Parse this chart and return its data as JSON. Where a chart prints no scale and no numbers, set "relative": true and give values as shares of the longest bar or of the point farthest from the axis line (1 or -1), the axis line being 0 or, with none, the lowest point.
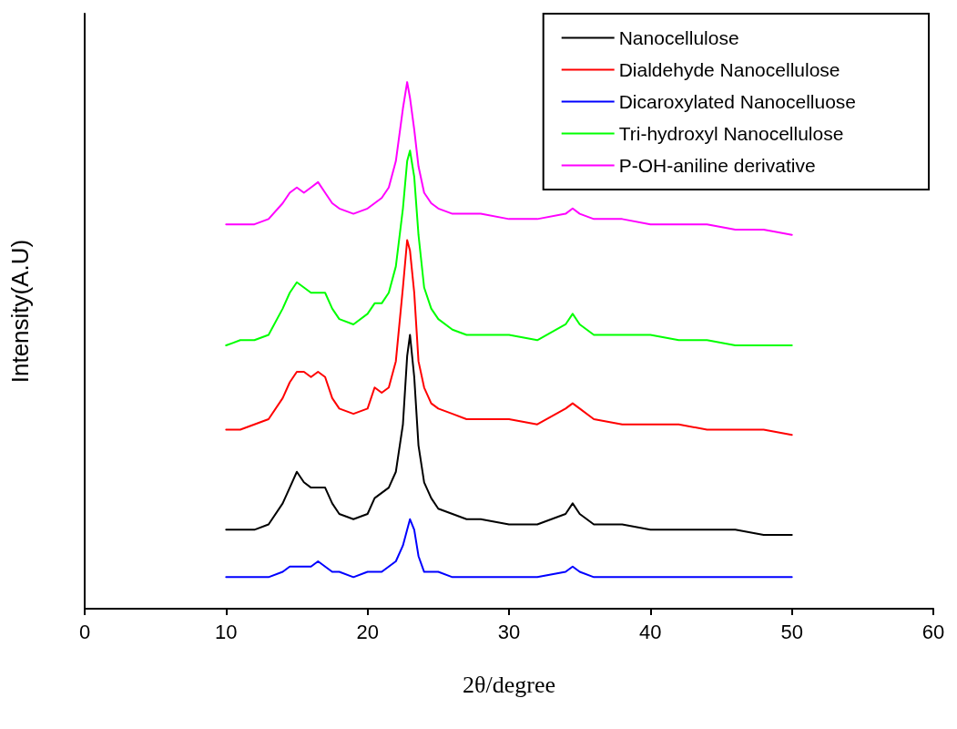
{
  "chart_data": {
    "type": "line",
    "relative": true,
    "xlabel": "2θ/degree",
    "ylabel": "Intensity(A.U)",
    "xlim": [
      0,
      60
    ],
    "xticks": [
      0,
      10,
      20,
      30,
      40,
      50,
      60
    ],
    "grid": false,
    "legend": "top right",
    "marker": "none",
    "x": [
      10,
      11,
      12,
      13,
      14,
      14.5,
      15,
      15.5,
      16,
      16.5,
      17,
      17.5,
      18,
      19,
      20,
      20.5,
      21,
      21.5,
      22,
      22.5,
      22.8,
      23,
      23.3,
      23.6,
      24,
      24.5,
      25,
      26,
      27,
      28,
      30,
      32,
      34,
      34.5,
      35,
      36,
      38,
      40,
      42,
      44,
      46,
      48,
      50
    ],
    "series": [
      {
        "name": "Nanocellulose",
        "color": "#000000",
        "values": [
          0.15,
          0.15,
          0.15,
          0.16,
          0.2,
          0.23,
          0.26,
          0.24,
          0.23,
          0.23,
          0.23,
          0.2,
          0.18,
          0.17,
          0.18,
          0.21,
          0.22,
          0.23,
          0.26,
          0.35,
          0.48,
          0.52,
          0.44,
          0.31,
          0.24,
          0.21,
          0.19,
          0.18,
          0.17,
          0.17,
          0.16,
          0.16,
          0.18,
          0.2,
          0.18,
          0.16,
          0.16,
          0.15,
          0.15,
          0.15,
          0.15,
          0.14,
          0.14
        ]
      },
      {
        "name": "Dialdehyde Nanocellulose",
        "color": "#ff0000",
        "values": [
          0.34,
          0.34,
          0.35,
          0.36,
          0.4,
          0.43,
          0.45,
          0.45,
          0.44,
          0.45,
          0.44,
          0.4,
          0.38,
          0.37,
          0.38,
          0.42,
          0.41,
          0.42,
          0.47,
          0.61,
          0.7,
          0.68,
          0.6,
          0.47,
          0.42,
          0.39,
          0.38,
          0.37,
          0.36,
          0.36,
          0.36,
          0.35,
          0.38,
          0.39,
          0.38,
          0.36,
          0.35,
          0.35,
          0.35,
          0.34,
          0.34,
          0.34,
          0.33
        ]
      },
      {
        "name": "Dicaroxylated Nanocelluose",
        "color": "#0000ff",
        "values": [
          0.06,
          0.06,
          0.06,
          0.06,
          0.07,
          0.08,
          0.08,
          0.08,
          0.08,
          0.09,
          0.08,
          0.07,
          0.07,
          0.06,
          0.07,
          0.07,
          0.07,
          0.08,
          0.09,
          0.12,
          0.15,
          0.17,
          0.15,
          0.1,
          0.07,
          0.07,
          0.07,
          0.06,
          0.06,
          0.06,
          0.06,
          0.06,
          0.07,
          0.08,
          0.07,
          0.06,
          0.06,
          0.06,
          0.06,
          0.06,
          0.06,
          0.06,
          0.06
        ]
      },
      {
        "name": "Tri-hydroxyl Nanocellulose",
        "color": "#00ff00",
        "values": [
          0.5,
          0.51,
          0.51,
          0.52,
          0.57,
          0.6,
          0.62,
          0.61,
          0.6,
          0.6,
          0.6,
          0.57,
          0.55,
          0.54,
          0.56,
          0.58,
          0.58,
          0.6,
          0.65,
          0.76,
          0.85,
          0.87,
          0.82,
          0.71,
          0.61,
          0.57,
          0.55,
          0.53,
          0.52,
          0.52,
          0.52,
          0.51,
          0.54,
          0.56,
          0.54,
          0.52,
          0.52,
          0.52,
          0.51,
          0.51,
          0.5,
          0.5,
          0.5
        ]
      },
      {
        "name": "P-OH-aniline derivative",
        "color": "#ff00ff",
        "values": [
          0.73,
          0.73,
          0.73,
          0.74,
          0.77,
          0.79,
          0.8,
          0.79,
          0.8,
          0.81,
          0.79,
          0.77,
          0.76,
          0.75,
          0.76,
          0.77,
          0.78,
          0.8,
          0.85,
          0.95,
          1.0,
          0.97,
          0.91,
          0.84,
          0.79,
          0.77,
          0.76,
          0.75,
          0.75,
          0.75,
          0.74,
          0.74,
          0.75,
          0.76,
          0.75,
          0.74,
          0.74,
          0.73,
          0.73,
          0.73,
          0.72,
          0.72,
          0.71
        ]
      }
    ]
  }
}
